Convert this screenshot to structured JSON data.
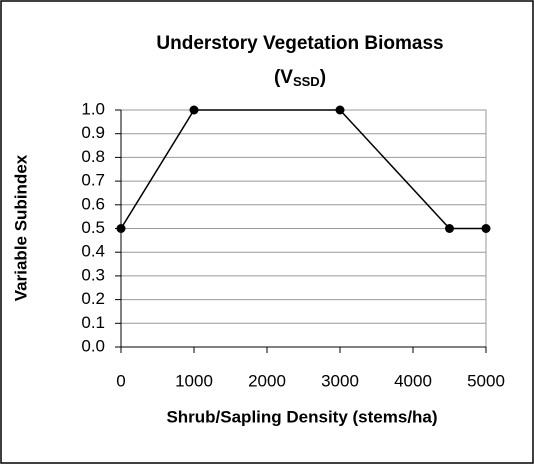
{
  "chart_data": {
    "type": "line",
    "title": "Understory Vegetation Biomass",
    "subtitle": [
      "(V",
      "SSD",
      ")"
    ],
    "x_label": "Shrub/Sapling Density (stems/ha)",
    "y_label": "Variable Subindex",
    "x": [
      0,
      1000,
      3000,
      4500,
      5000
    ],
    "series": [
      {
        "color": "#000000",
        "values": [
          0.5,
          1.0,
          1.0,
          0.5,
          0.5
        ]
      }
    ],
    "xlim": [
      0,
      5000
    ],
    "xticks": [
      0,
      1000,
      2000,
      3000,
      4000,
      5000
    ],
    "ylim": [
      0,
      1
    ],
    "yticks": [
      {
        "value": 0,
        "label": "0.0"
      },
      0.1,
      0.2,
      0.3,
      0.4,
      0.5,
      0.6,
      0.7,
      0.8,
      0.9,
      {
        "value": 1,
        "label": "1.0"
      }
    ],
    "grid": true
  }
}
